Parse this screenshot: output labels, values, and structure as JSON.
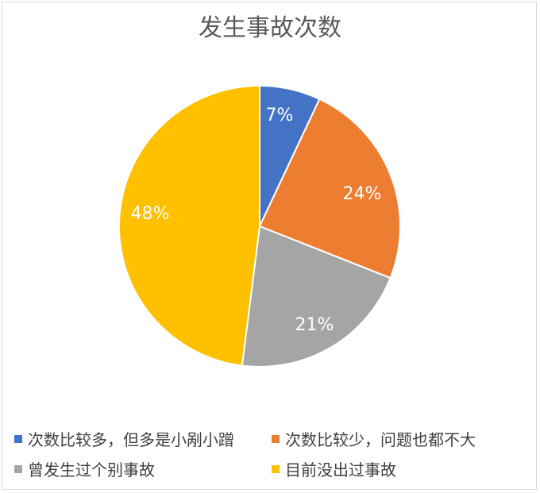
{
  "chart_data": {
    "type": "pie",
    "title": "发生事故次数",
    "categories": [
      "次数比较多，但多是小剐小蹭",
      "次数比较少，问题也都不大",
      "曾发生过个别事故",
      "目前没出过事故"
    ],
    "values": [
      7,
      24,
      21,
      48
    ],
    "labels": [
      "7%",
      "24%",
      "21%",
      "48%"
    ],
    "colors": [
      "#4472c4",
      "#ed7d31",
      "#a5a5a5",
      "#ffc000"
    ],
    "legend_position": "bottom"
  }
}
